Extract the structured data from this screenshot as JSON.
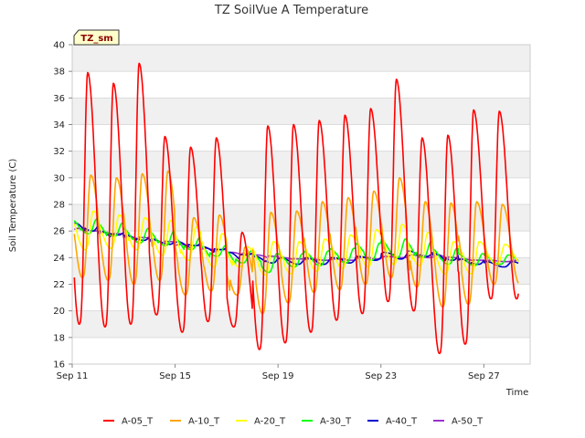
{
  "chart_data": {
    "type": "line",
    "title": "TZ SoilVue A Temperature",
    "xlabel": "Time",
    "ylabel": "Soil Temperature (C)",
    "site_label": "TZ_sm",
    "ylim": [
      16,
      40
    ],
    "xlim": [
      0,
      17.8
    ],
    "y_ticks": [
      16,
      18,
      20,
      22,
      24,
      26,
      28,
      30,
      32,
      34,
      36,
      38,
      40
    ],
    "x_ticks": [
      {
        "value": 0,
        "label": "Sep 11"
      },
      {
        "value": 4,
        "label": "Sep 15"
      },
      {
        "value": 8,
        "label": "Sep 19"
      },
      {
        "value": 12,
        "label": "Sep 23"
      },
      {
        "value": 16,
        "label": "Sep 27"
      }
    ],
    "grid": true,
    "legend_position": "bottom",
    "x_units": "days since Sep 11",
    "series": [
      {
        "name": "A-05_T",
        "color": "#ff0000",
        "min": [
          19.0,
          18.8,
          19.0,
          19.7,
          18.4,
          19.2,
          18.8,
          17.1,
          17.6,
          18.4,
          19.3,
          19.8,
          20.7,
          20.0,
          16.8,
          17.5,
          20.9
        ],
        "max": [
          37.9,
          37.1,
          38.6,
          33.1,
          32.3,
          33.0,
          25.9,
          33.9,
          34.0,
          34.3,
          34.7,
          35.2,
          37.4,
          33.0,
          33.2,
          35.1,
          35.0
        ]
      },
      {
        "name": "A-10_T",
        "color": "#ffa500",
        "min": [
          22.5,
          22.3,
          22.0,
          22.3,
          21.2,
          21.5,
          21.2,
          19.8,
          20.6,
          21.4,
          21.6,
          22.0,
          22.5,
          21.8,
          20.3,
          20.5,
          22.0
        ],
        "max": [
          30.2,
          30.0,
          30.3,
          30.5,
          27.0,
          27.2,
          24.8,
          27.4,
          27.5,
          28.2,
          28.5,
          29.0,
          30.0,
          28.2,
          28.1,
          28.2,
          28.0
        ],
        "peak_lag": 0.12
      },
      {
        "name": "A-20_T",
        "color": "#ffff00",
        "min": [
          24.6,
          24.7,
          24.6,
          24.2,
          23.8,
          23.3,
          23.3,
          22.7,
          22.8,
          23.0,
          23.2,
          23.3,
          23.5,
          23.4,
          22.8,
          22.8,
          23.5
        ],
        "max": [
          27.5,
          27.2,
          27.0,
          26.8,
          26.3,
          25.8,
          24.8,
          25.2,
          25.2,
          25.4,
          25.7,
          26.1,
          26.5,
          25.9,
          25.2,
          25.2,
          25.0
        ],
        "peak_lag": 0.22
      },
      {
        "name": "A-30_T",
        "color": "#00ff00",
        "min": [
          25.8,
          25.6,
          25.1,
          24.9,
          24.6,
          24.1,
          23.6,
          22.9,
          23.3,
          23.4,
          23.6,
          23.8,
          24.0,
          24.0,
          23.5,
          23.4,
          23.5
        ],
        "max": [
          26.9,
          26.6,
          26.2,
          26.0,
          25.5,
          24.9,
          24.5,
          24.3,
          24.3,
          24.5,
          24.7,
          25.1,
          25.4,
          25.2,
          24.7,
          24.3,
          24.2
        ],
        "peak_lag": 0.35
      },
      {
        "name": "A-40_T",
        "color": "#0000cd",
        "min": [
          26.0,
          25.7,
          25.3,
          25.0,
          24.9,
          24.6,
          24.2,
          23.6,
          23.5,
          23.5,
          23.6,
          23.8,
          23.9,
          24.1,
          23.8,
          23.5,
          23.3
        ],
        "max": [
          26.6,
          26.0,
          25.7,
          25.4,
          25.2,
          24.8,
          24.4,
          24.1,
          24.0,
          24.0,
          24.0,
          24.1,
          24.4,
          24.5,
          24.3,
          23.9,
          23.7
        ],
        "peak_lag": 0.5
      },
      {
        "name": "A-50_T",
        "color": "#9932cc",
        "min": [
          26.0,
          25.8,
          25.5,
          25.2,
          24.9,
          24.6,
          24.3,
          24.1,
          23.9,
          23.8,
          23.8,
          23.9,
          24.0,
          24.0,
          24.0,
          23.8,
          23.7
        ],
        "max": [
          26.2,
          25.9,
          25.6,
          25.3,
          25.0,
          24.7,
          24.4,
          24.2,
          24.0,
          23.9,
          23.9,
          24.0,
          24.1,
          24.2,
          24.2,
          23.9,
          23.8
        ],
        "peak_lag": 0.6
      }
    ]
  }
}
